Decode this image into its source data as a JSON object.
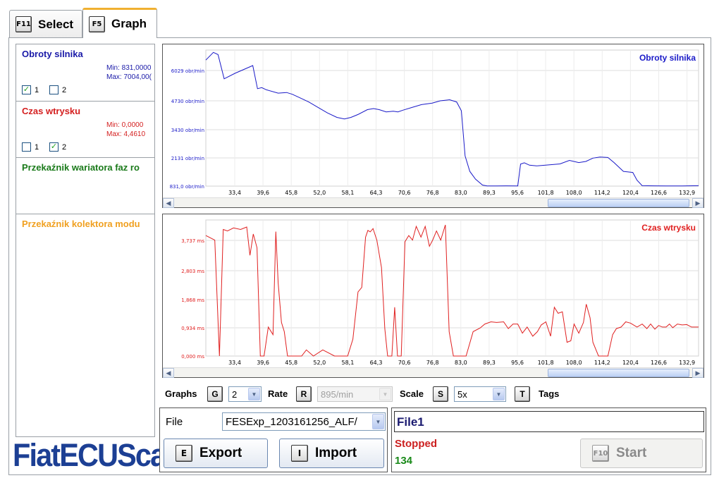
{
  "tabs": [
    {
      "key": "F11",
      "label": "Select"
    },
    {
      "key": "F5",
      "label": "Graph"
    }
  ],
  "channels": [
    {
      "name": "Obroty silnika",
      "color": "#1a1aa8",
      "min": "Min: 831,0000",
      "max": "Max: 7004,00(",
      "check1_label": "1",
      "check1": true,
      "check2_label": "2",
      "check2": false
    },
    {
      "name": "Czas wtrysku",
      "color": "#d42020",
      "min": "Min: 0,0000",
      "max": "Max: 4,4610",
      "check1_label": "1",
      "check1": false,
      "check2_label": "2",
      "check2": true
    },
    {
      "name": "Przekaźnik wariatora faz ro",
      "color": "#1a7a1a"
    },
    {
      "name": "Przekaźnik kolektora modu",
      "color": "#f0a020"
    }
  ],
  "logo": "FiatECUScan",
  "x_ticks": [
    "33,4",
    "39,6",
    "45,8",
    "52,0",
    "58,1",
    "64,3",
    "70,6",
    "76,8",
    "83,0",
    "89,3",
    "95,6",
    "101,8",
    "108,0",
    "114,2",
    "120,4",
    "126,6",
    "132,9"
  ],
  "chart_data": [
    {
      "type": "line",
      "title": "Obroty silnika",
      "color": "#1a1ac8",
      "y_ticks": [
        "6029 obr/min",
        "4730 obr/min",
        "3430 obr/min",
        "2131 obr/min",
        "831,0 obr/min"
      ],
      "ylim": [
        831,
        7004
      ],
      "xlim": [
        28.6,
        133.5
      ],
      "x": [
        28.6,
        30.2,
        31.2,
        32.5,
        34.8,
        38.6,
        39.6,
        40.5,
        41.5,
        44.0,
        45.8,
        47.0,
        48.5,
        50.5,
        52.5,
        54.5,
        56.5,
        58.1,
        59.5,
        61.0,
        63.0,
        64.3,
        65.5,
        67.0,
        68.5,
        69.5,
        70.6,
        72.5,
        74.5,
        76.8,
        78.5,
        80.5,
        82.0,
        83.0,
        83.8,
        84.8,
        86.0,
        87.5,
        88.5,
        89.3,
        90.5,
        92.5,
        95.0,
        95.6,
        96.4,
        97.5,
        99.0,
        101.8,
        104.0,
        106.0,
        108.0,
        109.5,
        111.0,
        112.5,
        114.2,
        115.5,
        117.5,
        119.5,
        120.4,
        121.5,
        124.0,
        126.6,
        130.0,
        133.5
      ],
      "values": [
        6550,
        6900,
        6800,
        5700,
        5950,
        6300,
        5250,
        5300,
        5200,
        5050,
        5080,
        5000,
        4850,
        4650,
        4400,
        4150,
        3950,
        3880,
        3950,
        4080,
        4300,
        4350,
        4300,
        4200,
        4230,
        4200,
        4280,
        4400,
        4530,
        4600,
        4700,
        4750,
        4650,
        4250,
        2200,
        1500,
        1150,
        880,
        840,
        840,
        840,
        845,
        840,
        1830,
        1890,
        1780,
        1750,
        1800,
        1840,
        2000,
        1900,
        1950,
        2100,
        2150,
        2130,
        1900,
        1500,
        1450,
        1100,
        850,
        845,
        840,
        840,
        850
      ]
    },
    {
      "type": "line",
      "title": "Czas wtrysku",
      "color": "#e02020",
      "y_ticks": [
        "3,737 ms",
        "2,803 ms",
        "1,868 ms",
        "0,934 ms",
        "0,000 ms"
      ],
      "ylim": [
        0,
        4.461
      ],
      "xlim": [
        28.6,
        133.5
      ],
      "x": [
        28.6,
        30.5,
        31.5,
        32.3,
        33.2,
        34.5,
        36.0,
        37.3,
        38.0,
        38.7,
        39.5,
        40.2,
        41.0,
        41.9,
        42.9,
        43.5,
        44.0,
        44.7,
        45.3,
        46.0,
        46.5,
        47.4,
        48.0,
        49.0,
        50.0,
        51.5,
        53.5,
        56.0,
        57.8,
        58.8,
        59.9,
        61.0,
        61.8,
        62.6,
        63.1,
        63.6,
        64.2,
        65.0,
        66.0,
        66.7,
        67.3,
        68.2,
        68.8,
        69.4,
        70.2,
        71.0,
        71.8,
        72.6,
        73.4,
        74.4,
        75.3,
        76.2,
        76.9,
        77.7,
        78.6,
        79.6,
        80.4,
        81.3,
        81.8,
        82.8,
        84.0,
        85.5,
        87.0,
        88.0,
        89.3,
        90.5,
        92.0,
        93.0,
        94.0,
        95.0,
        96.0,
        97.0,
        98.2,
        99.2,
        100.0,
        101.0,
        102.0,
        102.8,
        103.6,
        104.5,
        105.5,
        106.3,
        107.0,
        108.0,
        109.0,
        109.6,
        110.4,
        111.0,
        112.2,
        113.0,
        114.2,
        115.2,
        116.0,
        117.0,
        118.0,
        119.0,
        120.4,
        121.5,
        122.5,
        123.3,
        124.2,
        125.0,
        125.8,
        126.6,
        127.3,
        128.0,
        129.0,
        130.0,
        131.0,
        132.0,
        132.9,
        133.5
      ],
      "values": [
        3.95,
        3.8,
        0.0,
        4.15,
        4.1,
        4.2,
        4.15,
        4.23,
        3.3,
        4.0,
        3.55,
        0.0,
        0.0,
        0.95,
        0.7,
        4.08,
        2.4,
        1.1,
        0.8,
        0.0,
        0.0,
        0.0,
        0.0,
        0.0,
        0.2,
        0.0,
        0.2,
        0.0,
        0.0,
        0.0,
        0.55,
        2.1,
        2.25,
        3.9,
        4.12,
        4.07,
        4.18,
        3.8,
        2.9,
        0.9,
        0.0,
        0.0,
        1.6,
        0.0,
        0.0,
        3.75,
        3.95,
        3.8,
        4.25,
        3.9,
        4.25,
        3.6,
        3.8,
        4.1,
        3.8,
        4.3,
        0.8,
        0.0,
        0.0,
        0.0,
        0.0,
        0.8,
        0.92,
        1.05,
        1.12,
        1.1,
        1.12,
        0.9,
        1.05,
        1.05,
        0.75,
        0.95,
        0.65,
        0.8,
        1.02,
        1.12,
        0.65,
        1.6,
        1.4,
        1.45,
        0.45,
        0.5,
        1.05,
        0.75,
        1.1,
        1.7,
        1.25,
        0.45,
        0.0,
        0.0,
        0.0,
        0.7,
        0.9,
        0.95,
        1.12,
        1.08,
        0.95,
        1.05,
        0.9,
        1.05,
        0.88,
        1.0,
        0.95,
        0.95,
        1.05,
        0.93,
        1.05,
        1.02,
        1.03,
        0.95,
        0.95,
        0.95
      ]
    }
  ],
  "controls": {
    "graphs_label": "Graphs",
    "graphs_key": "G",
    "graphs_value": "2",
    "rate_label": "Rate",
    "rate_key": "R",
    "rate_value": "895/min",
    "scale_label": "Scale",
    "scale_key": "S",
    "scale_value": "5x",
    "tags_key": "T",
    "tags_label": "Tags"
  },
  "file": {
    "label": "File",
    "value": "FESExp_1203161256_ALF/",
    "export_key": "E",
    "export_label": "Export",
    "import_key": "I",
    "import_label": "Import"
  },
  "status": {
    "file_name": "File1",
    "state": "Stopped",
    "count": "134",
    "start_key": "F10",
    "start_label": "Start"
  }
}
